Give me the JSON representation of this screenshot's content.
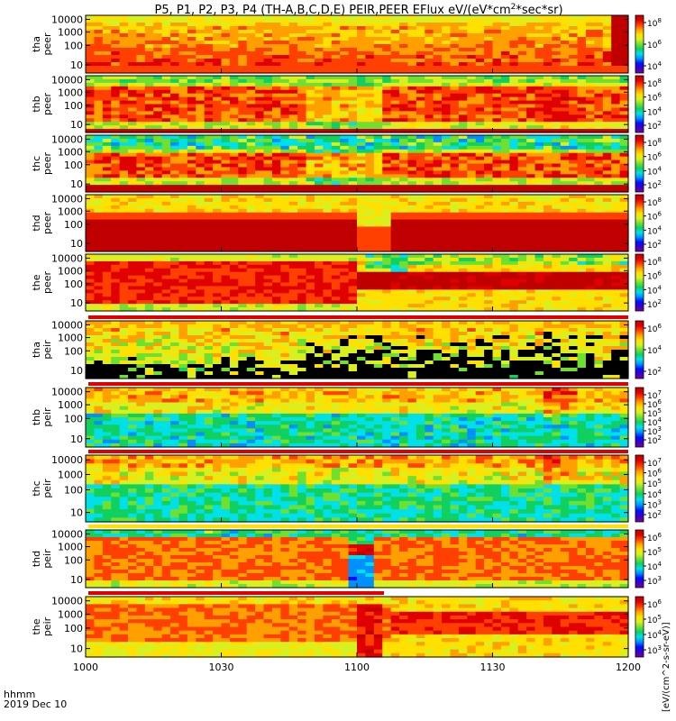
{
  "title": "P5, P1, P2, P3, P4 (TH-A,B,C,D,E) PEIR,PEER EFlux eV/(eV*cm^2*sec*sr)",
  "title_parts": {
    "main": "P5, P1, P2, P3, P4 (TH-A,B,C,D,E) PEIR,PEER EFlux eV/(eV*cm",
    "sup": "2",
    "tail": "*sec*sr)"
  },
  "colorbar_label": "[eV/(cm^2-s-sr-eV)]",
  "colors": {
    "ramp": [
      "#ffffff",
      "#7a00a0",
      "#3a00c8",
      "#0010ff",
      "#0090ff",
      "#00e0e8",
      "#10d060",
      "#70e030",
      "#d8f020",
      "#ffe000",
      "#ffa000",
      "#ff4000",
      "#e00000",
      "#c00000"
    ],
    "flag_red": "#e00000",
    "flag_yellow": "#ffe000"
  },
  "chart_data": {
    "type": "heatmap",
    "x_axis": {
      "label_line1": "hhmm",
      "label_line2": "2019 Dec 10",
      "ticks": [
        "1000",
        "1030",
        "1100",
        "1130",
        "1200"
      ],
      "range": [
        "10:00",
        "12:00"
      ]
    },
    "y_scale": "log",
    "y_ticks": [
      "10000",
      "1000",
      "100",
      "10"
    ],
    "panels": [
      {
        "probe": "tha",
        "type": "peer",
        "label1": "tha",
        "label2": "peer",
        "cb_ticks": [
          "10^8",
          "10^6",
          "10^4"
        ],
        "pattern": "tha_peer"
      },
      {
        "probe": "thb",
        "type": "peer",
        "label1": "thb",
        "label2": "peer",
        "cb_ticks": [
          "10^8",
          "10^6",
          "10^4",
          "10^2"
        ],
        "pattern": "thb_peer"
      },
      {
        "probe": "thc",
        "type": "peer",
        "label1": "thc",
        "label2": "peer",
        "cb_ticks": [
          "10^8",
          "10^6",
          "10^4",
          "10^2"
        ],
        "pattern": "thc_peer"
      },
      {
        "probe": "thd",
        "type": "peer",
        "label1": "thd",
        "label2": "peer",
        "cb_ticks": [
          "10^8",
          "10^6",
          "10^4",
          "10^2"
        ],
        "pattern": "thd_peer"
      },
      {
        "probe": "the",
        "type": "peer",
        "label1": "the",
        "label2": "peer",
        "cb_ticks": [
          "10^8",
          "10^6",
          "10^4",
          "10^2"
        ],
        "pattern": "the_peer"
      },
      {
        "probe": "tha",
        "type": "peir",
        "label1": "tha",
        "label2": "peir",
        "cb_ticks": [
          "10^6",
          "10^4",
          "10^2"
        ],
        "pattern": "tha_peir"
      },
      {
        "probe": "thb",
        "type": "peir",
        "label1": "thb",
        "label2": "peir",
        "cb_ticks": [
          "10^7",
          "10^6",
          "10^5",
          "10^4",
          "10^3",
          "10^2"
        ],
        "pattern": "thb_peir"
      },
      {
        "probe": "thc",
        "type": "peir",
        "label1": "thc",
        "label2": "peir",
        "cb_ticks": [
          "10^7",
          "10^6",
          "10^5",
          "10^4",
          "10^3",
          "10^2"
        ],
        "pattern": "thc_peir"
      },
      {
        "probe": "thd",
        "type": "peir",
        "label1": "thd",
        "label2": "peir",
        "cb_ticks": [
          "10^6",
          "10^5",
          "10^4",
          "10^3"
        ],
        "pattern": "thd_peir"
      },
      {
        "probe": "the",
        "type": "peir",
        "label1": "the",
        "label2": "peir",
        "cb_ticks": [
          "10^6",
          "10^5",
          "10^4",
          "10^3"
        ],
        "pattern": "the_peir"
      }
    ]
  }
}
